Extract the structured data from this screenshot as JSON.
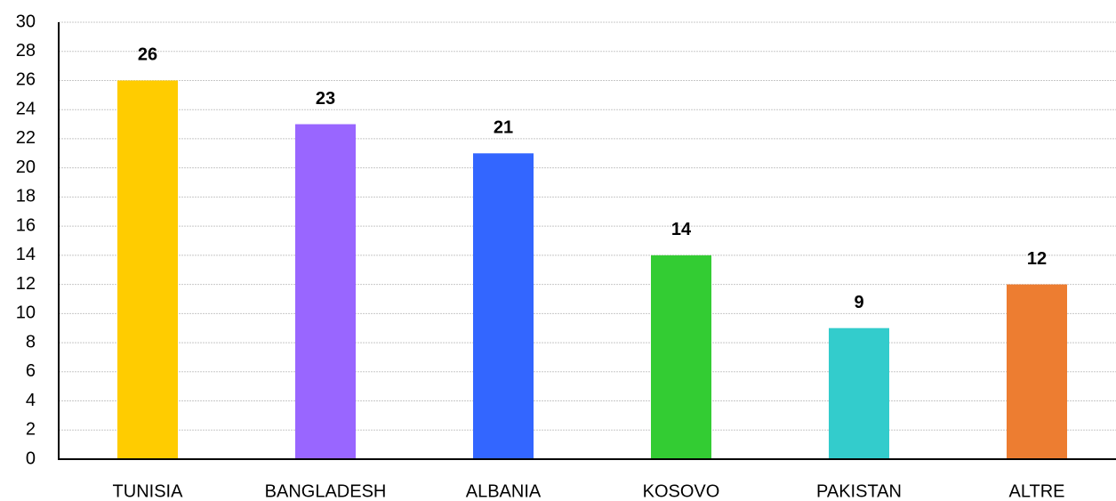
{
  "chart_data": {
    "type": "bar",
    "categories": [
      "TUNISIA",
      "BANGLADESH",
      "ALBANIA",
      "KOSOVO",
      "PAKISTAN",
      "ALTRE"
    ],
    "values": [
      26,
      23,
      21,
      14,
      9,
      12
    ],
    "colors": [
      "#ffcc00",
      "#9966ff",
      "#3366ff",
      "#33cc33",
      "#33cccc",
      "#ed7d31"
    ],
    "ylim": [
      0,
      30
    ],
    "yticks": [
      0,
      2,
      4,
      6,
      8,
      10,
      12,
      14,
      16,
      18,
      20,
      22,
      24,
      26,
      28,
      30
    ],
    "grid": true
  }
}
